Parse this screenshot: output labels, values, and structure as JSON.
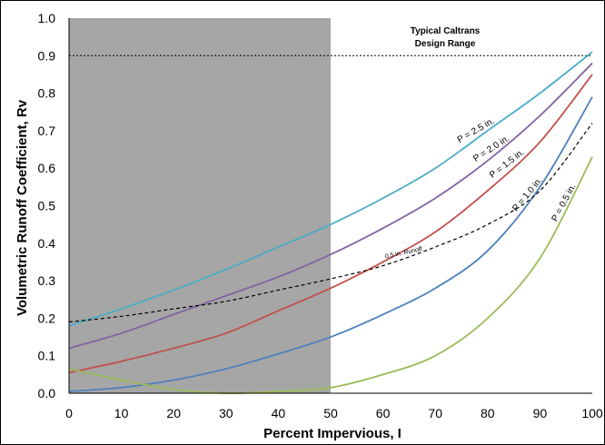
{
  "chart_data": {
    "type": "line",
    "title": "",
    "xlabel": "Percent Impervious, I",
    "ylabel": "Volumetric Runoff Coefficient, Rv",
    "xlim": [
      0,
      100
    ],
    "ylim": [
      0,
      1.0
    ],
    "xticks": [
      "0",
      "10",
      "20",
      "30",
      "40",
      "50",
      "60",
      "70",
      "80",
      "90",
      "100"
    ],
    "yticks": [
      "0.0",
      "0.1",
      "0.2",
      "0.3",
      "0.4",
      "0.5",
      "0.6",
      "0.7",
      "0.8",
      "0.9",
      "1.0"
    ],
    "grid": false,
    "shaded_region": {
      "x_start": 0,
      "x_end": 50,
      "color": "#a6a6a6"
    },
    "reference_line": {
      "y": 0.9,
      "style": "dotted"
    },
    "design_range_label": [
      "Typical Caltrans",
      "Design Range"
    ],
    "x": [
      0,
      10,
      20,
      30,
      40,
      50,
      60,
      70,
      80,
      90,
      100
    ],
    "series": [
      {
        "name": "P = 2.5 in.",
        "color": "#4bacc6",
        "values": [
          0.18,
          0.225,
          0.275,
          0.33,
          0.39,
          0.45,
          0.52,
          0.6,
          0.7,
          0.8,
          0.91
        ]
      },
      {
        "name": "P = 2.0 in.",
        "color": "#8064a2",
        "values": [
          0.12,
          0.16,
          0.21,
          0.26,
          0.31,
          0.37,
          0.44,
          0.52,
          0.62,
          0.74,
          0.88
        ]
      },
      {
        "name": "P = 1.5 in.",
        "color": "#c0504d",
        "values": [
          0.055,
          0.085,
          0.12,
          0.16,
          0.22,
          0.28,
          0.35,
          0.43,
          0.54,
          0.67,
          0.85
        ]
      },
      {
        "name": "P = 1.0 in.",
        "color": "#4f81bd",
        "values": [
          0.005,
          0.015,
          0.035,
          0.065,
          0.105,
          0.15,
          0.21,
          0.28,
          0.38,
          0.55,
          0.79
        ]
      },
      {
        "name": "P = 0.5 in.",
        "color": "#9bbb59",
        "values": [
          0.065,
          0.035,
          0.01,
          0.0,
          0.005,
          0.015,
          0.05,
          0.1,
          0.2,
          0.36,
          0.63
        ]
      },
      {
        "name": "0.5 in. Runoff",
        "color": "#000000",
        "dashed": true,
        "values": [
          0.19,
          0.205,
          0.225,
          0.245,
          0.275,
          0.305,
          0.34,
          0.39,
          0.45,
          0.54,
          0.72
        ]
      }
    ]
  }
}
